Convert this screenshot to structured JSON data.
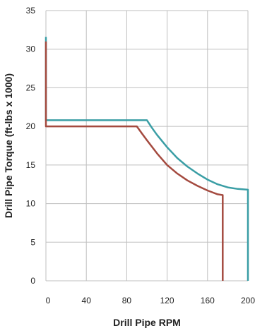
{
  "chart_data": {
    "type": "line",
    "title": "",
    "xlabel": "Drill Pipe RPM",
    "ylabel": "Drill Pipe Torque (ft-lbs x 1000)",
    "xlim": [
      0,
      200
    ],
    "ylim": [
      0,
      35
    ],
    "x_ticks": [
      0,
      40,
      80,
      120,
      160,
      200
    ],
    "y_ticks": [
      0,
      5,
      10,
      15,
      20,
      25,
      30,
      35
    ],
    "grid": true,
    "legend": "none",
    "series": [
      {
        "color": "#3a9ea5",
        "points": [
          [
            0,
            31.6
          ],
          [
            0,
            20.8
          ],
          [
            100,
            20.8
          ],
          [
            105,
            19.8
          ],
          [
            110,
            18.9
          ],
          [
            120,
            17.3
          ],
          [
            130,
            15.9
          ],
          [
            140,
            14.8
          ],
          [
            150,
            13.9
          ],
          [
            160,
            13.1
          ],
          [
            170,
            12.5
          ],
          [
            180,
            12.1
          ],
          [
            190,
            11.9
          ],
          [
            200,
            11.8
          ],
          [
            200,
            0
          ]
        ]
      },
      {
        "color": "#a44a3f",
        "points": [
          [
            0,
            31.0
          ],
          [
            0,
            20.0
          ],
          [
            90,
            20.0
          ],
          [
            95,
            19.1
          ],
          [
            100,
            18.2
          ],
          [
            110,
            16.5
          ],
          [
            120,
            15.0
          ],
          [
            130,
            13.9
          ],
          [
            140,
            13.0
          ],
          [
            150,
            12.3
          ],
          [
            160,
            11.7
          ],
          [
            170,
            11.2
          ],
          [
            175,
            11.1
          ],
          [
            175,
            0
          ]
        ]
      }
    ]
  }
}
